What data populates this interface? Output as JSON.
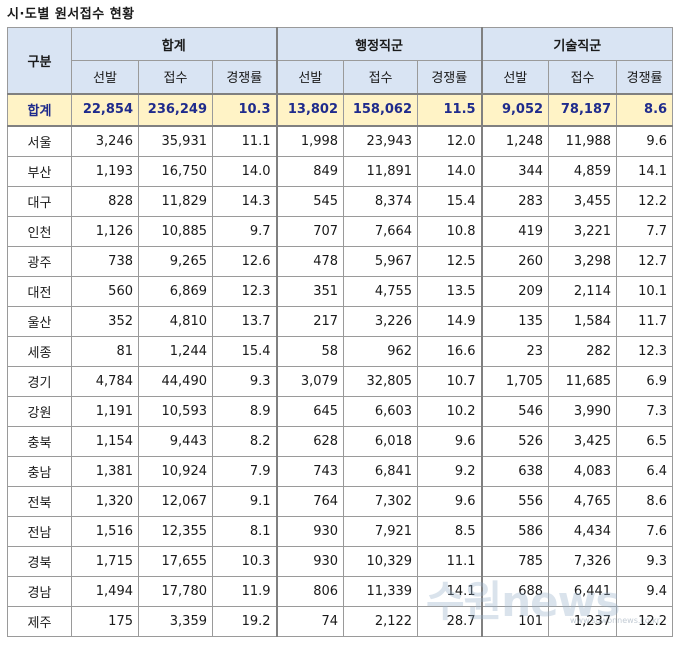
{
  "title": "시·도별 원서접수 현황",
  "header": {
    "region_col": "구분",
    "groups": [
      "합계",
      "행정직군",
      "기술직군"
    ],
    "subcols": [
      "선발",
      "접수",
      "경쟁률"
    ]
  },
  "rows": [
    {
      "region": "합계",
      "vals": [
        "22,854",
        "236,249",
        "10.3",
        "13,802",
        "158,062",
        "11.5",
        "9,052",
        "78,187",
        "8.6"
      ]
    },
    {
      "region": "서울",
      "vals": [
        "3,246",
        "35,931",
        "11.1",
        "1,998",
        "23,943",
        "12.0",
        "1,248",
        "11,988",
        "9.6"
      ]
    },
    {
      "region": "부산",
      "vals": [
        "1,193",
        "16,750",
        "14.0",
        "849",
        "11,891",
        "14.0",
        "344",
        "4,859",
        "14.1"
      ]
    },
    {
      "region": "대구",
      "vals": [
        "828",
        "11,829",
        "14.3",
        "545",
        "8,374",
        "15.4",
        "283",
        "3,455",
        "12.2"
      ]
    },
    {
      "region": "인천",
      "vals": [
        "1,126",
        "10,885",
        "9.7",
        "707",
        "7,664",
        "10.8",
        "419",
        "3,221",
        "7.7"
      ]
    },
    {
      "region": "광주",
      "vals": [
        "738",
        "9,265",
        "12.6",
        "478",
        "5,967",
        "12.5",
        "260",
        "3,298",
        "12.7"
      ]
    },
    {
      "region": "대전",
      "vals": [
        "560",
        "6,869",
        "12.3",
        "351",
        "4,755",
        "13.5",
        "209",
        "2,114",
        "10.1"
      ]
    },
    {
      "region": "울산",
      "vals": [
        "352",
        "4,810",
        "13.7",
        "217",
        "3,226",
        "14.9",
        "135",
        "1,584",
        "11.7"
      ]
    },
    {
      "region": "세종",
      "vals": [
        "81",
        "1,244",
        "15.4",
        "58",
        "962",
        "16.6",
        "23",
        "282",
        "12.3"
      ]
    },
    {
      "region": "경기",
      "vals": [
        "4,784",
        "44,490",
        "9.3",
        "3,079",
        "32,805",
        "10.7",
        "1,705",
        "11,685",
        "6.9"
      ]
    },
    {
      "region": "강원",
      "vals": [
        "1,191",
        "10,593",
        "8.9",
        "645",
        "6,603",
        "10.2",
        "546",
        "3,990",
        "7.3"
      ]
    },
    {
      "region": "충북",
      "vals": [
        "1,154",
        "9,443",
        "8.2",
        "628",
        "6,018",
        "9.6",
        "526",
        "3,425",
        "6.5"
      ]
    },
    {
      "region": "충남",
      "vals": [
        "1,381",
        "10,924",
        "7.9",
        "743",
        "6,841",
        "9.2",
        "638",
        "4,083",
        "6.4"
      ]
    },
    {
      "region": "전북",
      "vals": [
        "1,320",
        "12,067",
        "9.1",
        "764",
        "7,302",
        "9.6",
        "556",
        "4,765",
        "8.6"
      ]
    },
    {
      "region": "전남",
      "vals": [
        "1,516",
        "12,355",
        "8.1",
        "930",
        "7,921",
        "8.5",
        "586",
        "4,434",
        "7.6"
      ]
    },
    {
      "region": "경북",
      "vals": [
        "1,715",
        "17,655",
        "10.3",
        "930",
        "10,329",
        "11.1",
        "785",
        "7,326",
        "9.3"
      ]
    },
    {
      "region": "경남",
      "vals": [
        "1,494",
        "17,780",
        "11.9",
        "806",
        "11,339",
        "14.1",
        "688",
        "6,441",
        "9.4"
      ]
    },
    {
      "region": "제주",
      "vals": [
        "175",
        "3,359",
        "19.2",
        "74",
        "2,122",
        "28.7",
        "101",
        "1,237",
        "12.2"
      ]
    }
  ],
  "watermark": "수원news",
  "watermark_sub": "www.suwonnews.co.kr",
  "colors": {
    "header_bg": "#d9e4f3",
    "total_bg": "#fff3c6",
    "total_text": "#1f2b8c",
    "border": "#9a9a9a"
  }
}
